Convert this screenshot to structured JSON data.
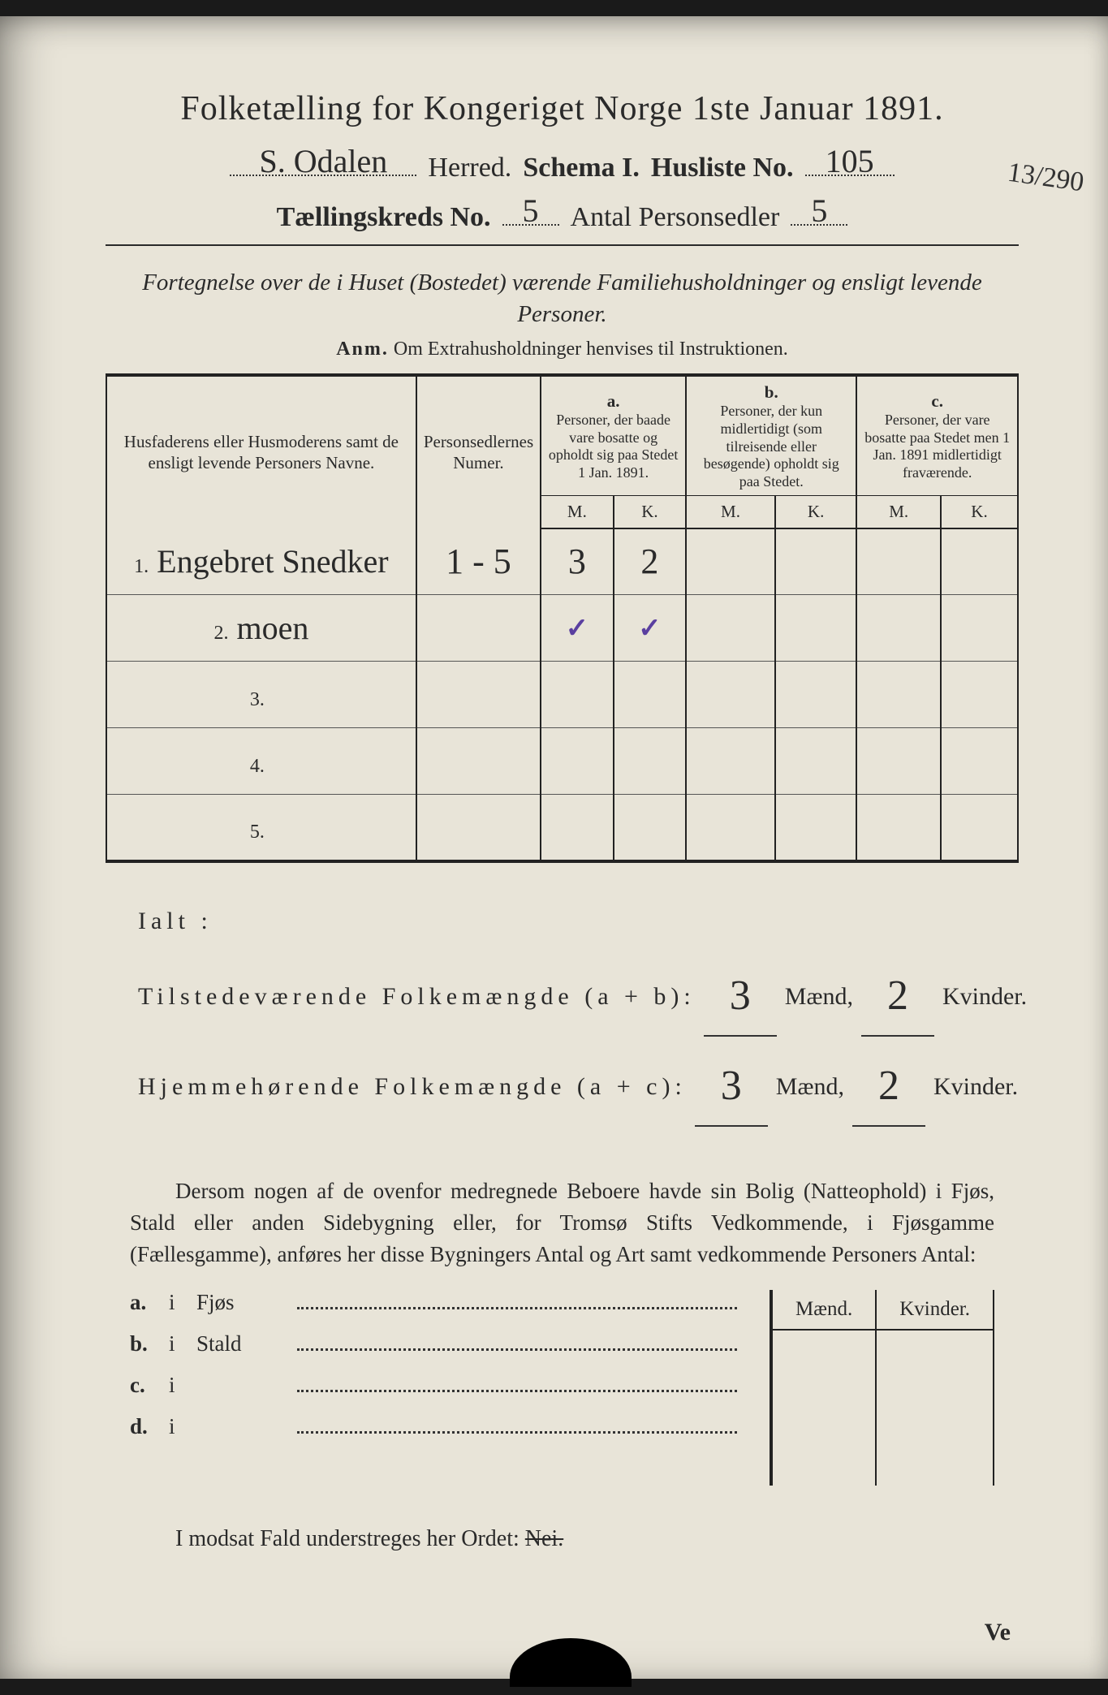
{
  "colors": {
    "paper": "#e8e4d8",
    "ink": "#2a2a2a",
    "handwriting": "#2b2b2b",
    "checkmark": "#5a3fa0",
    "background": "#1a1a1a"
  },
  "header": {
    "main_title": "Folketælling for Kongeriget Norge 1ste Januar 1891.",
    "herred_label": "Herred.",
    "herred_value": "S. Odalen",
    "schema_label": "Schema I.",
    "husliste_label": "Husliste No.",
    "husliste_value": "105",
    "kreds_label": "Tællingskreds No.",
    "kreds_value": "5",
    "antal_label": "Antal Personsedler",
    "antal_value": "5",
    "margin_note": "13/290"
  },
  "subtitle": {
    "line": "Fortegnelse over de i Huset (Bostedet) værende Familiehusholdninger og ensligt levende Personer.",
    "anm_label": "Anm.",
    "anm_text": "Om Extrahusholdninger henvises til Instruktionen."
  },
  "table": {
    "col_names_header": "Husfaderens eller Husmoderens samt de ensligt levende Personers Navne.",
    "col_num_header": "Personsedlernes Numer.",
    "group_a_letter": "a.",
    "group_a_text": "Personer, der baade vare bosatte og opholdt sig paa Stedet 1 Jan. 1891.",
    "group_b_letter": "b.",
    "group_b_text": "Personer, der kun midlertidigt (som tilreisende eller besøgende) opholdt sig paa Stedet.",
    "group_c_letter": "c.",
    "group_c_text": "Personer, der vare bosatte paa Stedet men 1 Jan. 1891 midlertidigt fraværende.",
    "m_label": "M.",
    "k_label": "K.",
    "rows": [
      {
        "n": "1.",
        "name": "Engebret Snedker",
        "num": "1 - 5",
        "a_m": "3",
        "a_k": "2",
        "b_m": "",
        "b_k": "",
        "c_m": "",
        "c_k": ""
      },
      {
        "n": "2.",
        "name": "moen",
        "num": "",
        "a_m": "✓",
        "a_k": "✓",
        "b_m": "",
        "b_k": "",
        "c_m": "",
        "c_k": ""
      },
      {
        "n": "3.",
        "name": "",
        "num": "",
        "a_m": "",
        "a_k": "",
        "b_m": "",
        "b_k": "",
        "c_m": "",
        "c_k": ""
      },
      {
        "n": "4.",
        "name": "",
        "num": "",
        "a_m": "",
        "a_k": "",
        "b_m": "",
        "b_k": "",
        "c_m": "",
        "c_k": ""
      },
      {
        "n": "5.",
        "name": "",
        "num": "",
        "a_m": "",
        "a_k": "",
        "b_m": "",
        "b_k": "",
        "c_m": "",
        "c_k": ""
      }
    ]
  },
  "totals": {
    "ialt": "Ialt :",
    "tilstede_label": "Tilstedeværende Folkemængde (a + b):",
    "hjemme_label": "Hjemmehørende Folkemængde (a + c):",
    "maend": "Mænd,",
    "kvinder": "Kvinder.",
    "tilstede_m": "3",
    "tilstede_k": "2",
    "hjemme_m": "3",
    "hjemme_k": "2"
  },
  "paragraph": "Dersom nogen af de ovenfor medregnede Beboere havde sin Bolig (Natteophold) i Fjøs, Stald eller anden Sidebygning eller, for Tromsø Stifts Vedkommende, i Fjøsgamme (Fællesgamme), anføres her disse Bygningers Antal og Art samt vedkommende Personers Antal:",
  "buildings": {
    "maend": "Mænd.",
    "kvinder": "Kvinder.",
    "rows": [
      {
        "lbl": "a.",
        "type": "Fjøs"
      },
      {
        "lbl": "b.",
        "type": "Stald"
      },
      {
        "lbl": "c.",
        "type": ""
      },
      {
        "lbl": "d.",
        "type": ""
      }
    ]
  },
  "footer": {
    "line_prefix": "I modsat Fald understreges her Ordet:",
    "nei": "Nei.",
    "ve": "Ve"
  }
}
